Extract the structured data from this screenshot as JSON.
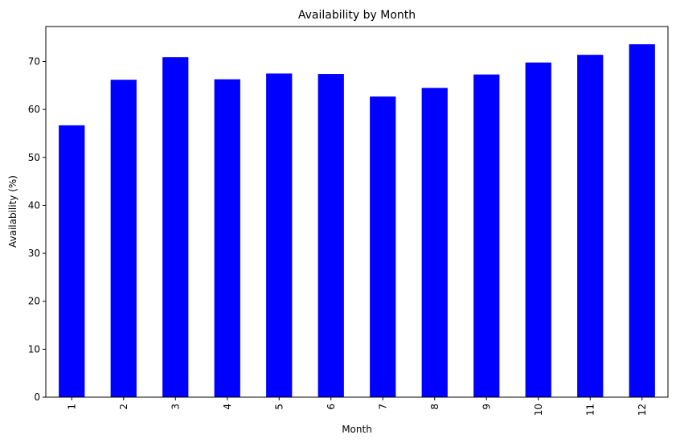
{
  "chart_data": {
    "type": "bar",
    "title": "Availability by Month",
    "xlabel": "Month",
    "ylabel": "Availability (%)",
    "categories": [
      "1",
      "2",
      "3",
      "4",
      "5",
      "6",
      "7",
      "8",
      "9",
      "10",
      "11",
      "12"
    ],
    "values": [
      56.7,
      66.2,
      70.9,
      66.3,
      67.5,
      67.4,
      62.7,
      64.5,
      67.3,
      69.8,
      71.4,
      73.6
    ],
    "ylim": [
      0,
      77.3
    ],
    "yticks": [
      0,
      10,
      20,
      30,
      40,
      50,
      60,
      70
    ],
    "bar_color": "#0000ff",
    "grid": false,
    "legend": "none"
  }
}
